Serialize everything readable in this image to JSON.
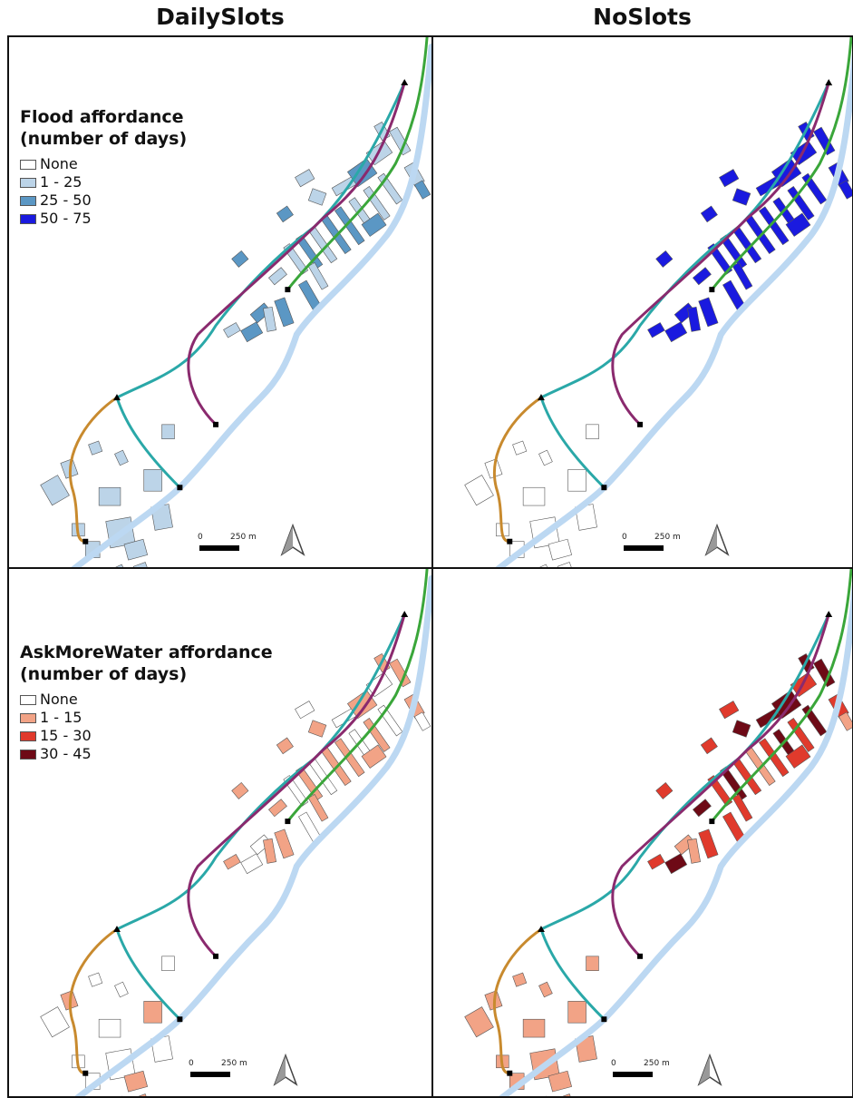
{
  "columns": {
    "left": "DailySlots",
    "right": "NoSlots"
  },
  "legends": {
    "flood": {
      "title_line1": "Flood affordance",
      "title_line2": "(number of days)",
      "items": [
        {
          "label": "None",
          "color": "#ffffff"
        },
        {
          "label": "1 - 25",
          "color": "#bcd4e8"
        },
        {
          "label": "25 - 50",
          "color": "#5b97c4"
        },
        {
          "label": "50 - 75",
          "color": "#1a1adf"
        }
      ]
    },
    "askmore": {
      "title_line1": "AskMoreWater affordance",
      "title_line2": "(number of days)",
      "items": [
        {
          "label": "None",
          "color": "#ffffff"
        },
        {
          "label": "1 - 15",
          "color": "#f2a386"
        },
        {
          "label": "15 - 30",
          "color": "#e03a2c"
        },
        {
          "label": "30 - 45",
          "color": "#6e0a16"
        }
      ]
    }
  },
  "scale": {
    "zero": "0",
    "distance": "250 m"
  },
  "colors": {
    "river": "#bcd8f2",
    "canal_teal": "#2aa8a8",
    "canal_purple": "#8a2a6e",
    "canal_green": "#3aa63a",
    "canal_orange": "#c88a2e"
  }
}
